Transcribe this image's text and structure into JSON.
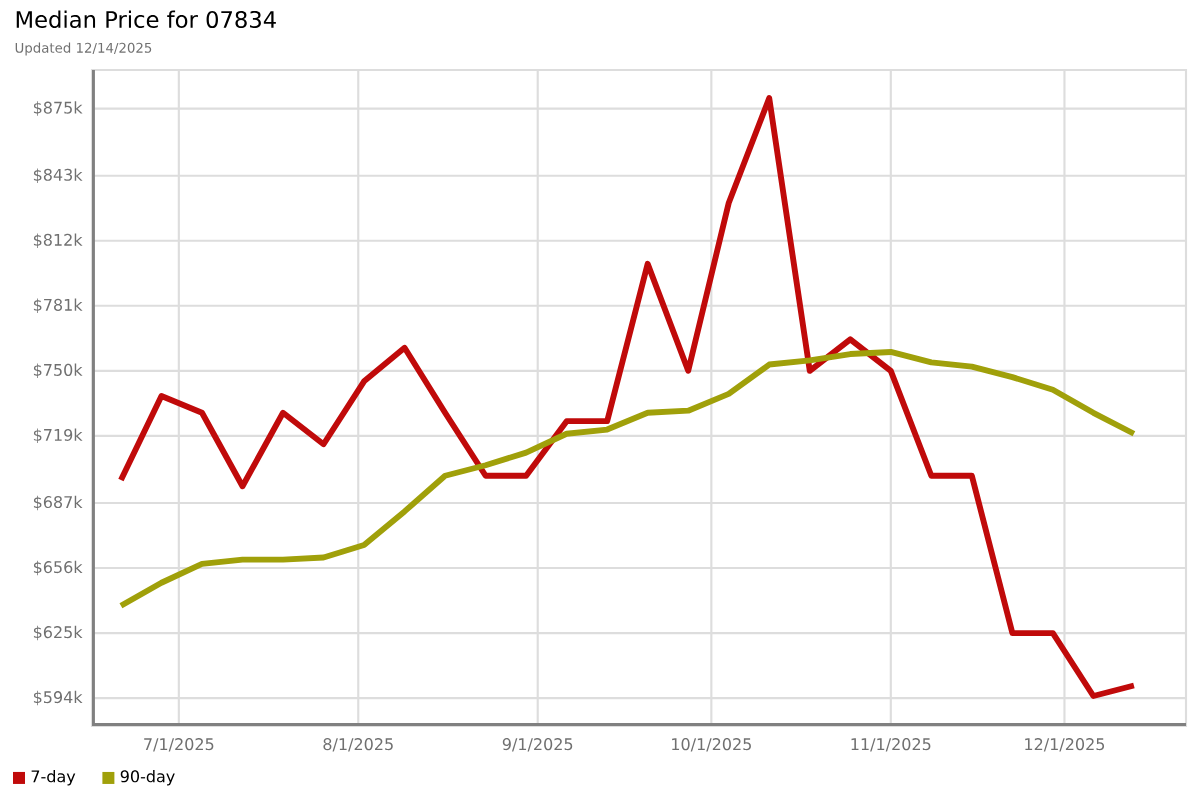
{
  "chart_data": {
    "type": "line",
    "title": "Median Price for 07834",
    "subtitle": "Updated 12/14/2025",
    "x": [
      "2025-06-21",
      "2025-06-28",
      "2025-07-05",
      "2025-07-12",
      "2025-07-19",
      "2025-07-26",
      "2025-08-02",
      "2025-08-09",
      "2025-08-16",
      "2025-08-23",
      "2025-08-30",
      "2025-09-06",
      "2025-09-13",
      "2025-09-20",
      "2025-09-27",
      "2025-10-04",
      "2025-10-11",
      "2025-10-18",
      "2025-10-25",
      "2025-11-01",
      "2025-11-08",
      "2025-11-15",
      "2025-11-22",
      "2025-11-29",
      "2025-12-06",
      "2025-12-13"
    ],
    "series": [
      {
        "name": "7-day",
        "color": "#c00a0a",
        "values": [
          698,
          738,
          730,
          695,
          730,
          715,
          745,
          761,
          730,
          700,
          700,
          726,
          726,
          801,
          750,
          830,
          880,
          750,
          765,
          750,
          700,
          700,
          625,
          625,
          595,
          600
        ]
      },
      {
        "name": "90-day",
        "color": "#a0a00a",
        "values": [
          638,
          649,
          658,
          660,
          660,
          661,
          667,
          683,
          700,
          705,
          711,
          720,
          722,
          730,
          731,
          739,
          753,
          755,
          758,
          759,
          754,
          752,
          747,
          741,
          730,
          720
        ]
      }
    ],
    "xlim": [
      "2025-06-16",
      "2025-12-22"
    ],
    "xticks": [
      {
        "value": "2025-07-01",
        "label": "7/1/2025"
      },
      {
        "value": "2025-08-01",
        "label": "8/1/2025"
      },
      {
        "value": "2025-09-01",
        "label": "9/1/2025"
      },
      {
        "value": "2025-10-01",
        "label": "10/1/2025"
      },
      {
        "value": "2025-11-01",
        "label": "11/1/2025"
      },
      {
        "value": "2025-12-01",
        "label": "12/1/2025"
      }
    ],
    "ylim": [
      580.7,
      893.4
    ],
    "yticks": [
      {
        "value": 594,
        "label": "$594k"
      },
      {
        "value": 625,
        "label": "$625k"
      },
      {
        "value": 656,
        "label": "$656k"
      },
      {
        "value": 687,
        "label": "$687k"
      },
      {
        "value": 719,
        "label": "$719k"
      },
      {
        "value": 750,
        "label": "$750k"
      },
      {
        "value": 781,
        "label": "$781k"
      },
      {
        "value": 812,
        "label": "$812k"
      },
      {
        "value": 843,
        "label": "$843k"
      },
      {
        "value": 875,
        "label": "$875k"
      }
    ],
    "grid": true,
    "legend": "bottom left",
    "line_style": "solid"
  }
}
